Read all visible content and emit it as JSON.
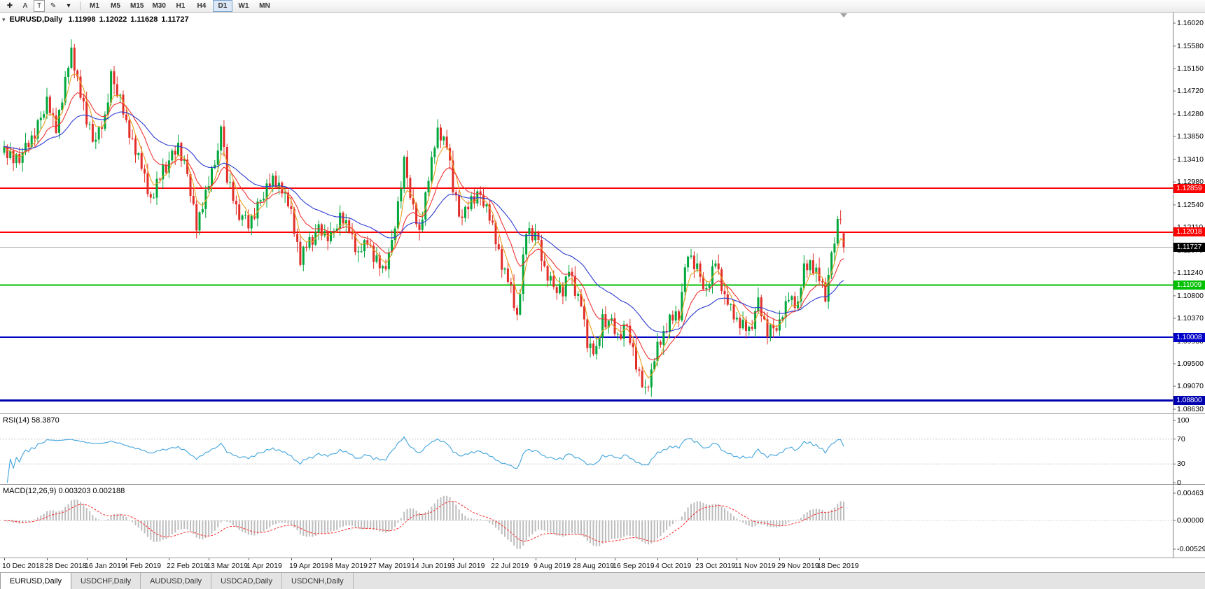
{
  "toolbar": {
    "tools": [
      {
        "name": "cursor-tool",
        "glyph": "✚"
      },
      {
        "name": "text-label-tool",
        "glyph": "A"
      },
      {
        "name": "text-box-tool",
        "glyph": "T",
        "boxed": true
      },
      {
        "name": "pencil-draw-tool",
        "glyph": "✎"
      },
      {
        "name": "arrow-style-dropdown",
        "glyph": "▾"
      }
    ],
    "timeframes": [
      "M1",
      "M5",
      "M15",
      "M30",
      "H1",
      "H4",
      "D1",
      "W1",
      "MN"
    ],
    "active_timeframe": "D1"
  },
  "chart": {
    "symbol_title": "EURUSD,Daily",
    "collapse_icon": "▾",
    "ohlc": {
      "open": "1.11998",
      "high": "1.12022",
      "low": "1.11628",
      "close": "1.11727"
    },
    "current_price": {
      "value": 1.11727,
      "label": "1.11727",
      "box_color": "#000000",
      "line_color": "#b8b8b8"
    },
    "levels": [
      {
        "price": 1.12859,
        "label": "1.12859",
        "color": "#ff0000",
        "width": 2
      },
      {
        "price": 1.12018,
        "label": "1.12018",
        "color": "#ff0000",
        "width": 2
      },
      {
        "price": 1.11009,
        "label": "1.11009",
        "color": "#00c000",
        "width": 2
      },
      {
        "price": 1.10008,
        "label": "1.10008",
        "color": "#0000c8",
        "width": 2
      },
      {
        "price": 1.088,
        "label": "1.08800",
        "color": "#0000b0",
        "width": 3
      }
    ],
    "candle_colors": {
      "up": "#00a83c",
      "down": "#e22e29"
    },
    "moving_averages": [
      {
        "name": "ma-fast",
        "period": 5,
        "color": "#e8a020"
      },
      {
        "name": "ma-mid",
        "period": 13,
        "color": "#f23333"
      },
      {
        "name": "ma-slow",
        "period": 34,
        "color": "#2b3bd0"
      }
    ]
  },
  "chart_data": {
    "type": "candlestick",
    "symbol": "EURUSD",
    "timeframe": "Daily",
    "y_axis": {
      "min": 1.0863,
      "max": 1.1602,
      "ticks": [
        "1.16020",
        "1.15580",
        "1.15150",
        "1.14720",
        "1.14280",
        "1.13850",
        "1.13410",
        "1.12980",
        "1.12540",
        "1.12110",
        "1.11670",
        "1.11240",
        "1.10800",
        "1.10370",
        "1.09930",
        "1.09500",
        "1.09070",
        "1.08630"
      ]
    },
    "x_dates": [
      {
        "label": "10 Dec 2018",
        "day": 0
      },
      {
        "label": "28 Dec 2018",
        "day": 14
      },
      {
        "label": "16 Jan 2019",
        "day": 27
      },
      {
        "label": "4 Feb 2019",
        "day": 40
      },
      {
        "label": "22 Feb 2019",
        "day": 54
      },
      {
        "label": "13 Mar 2019",
        "day": 67
      },
      {
        "label": "1 Apr 2019",
        "day": 80
      },
      {
        "label": "19 Apr 2019",
        "day": 94
      },
      {
        "label": "8 May 2019",
        "day": 107
      },
      {
        "label": "27 May 2019",
        "day": 120
      },
      {
        "label": "14 Jun 2019",
        "day": 134
      },
      {
        "label": "3 Jul 2019",
        "day": 147
      },
      {
        "label": "22 Jul 2019",
        "day": 160
      },
      {
        "label": "9 Aug 2019",
        "day": 174
      },
      {
        "label": "28 Aug 2019",
        "day": 187
      },
      {
        "label": "16 Sep 2019",
        "day": 200
      },
      {
        "label": "4 Oct 2019",
        "day": 214
      },
      {
        "label": "23 Oct 2019",
        "day": 227
      },
      {
        "label": "11 Nov 2019",
        "day": 240
      },
      {
        "label": "29 Nov 2019",
        "day": 254
      },
      {
        "label": "18 Dec 2019",
        "day": 267
      }
    ],
    "candle_count": 276,
    "anchors": [
      [
        0,
        1.136
      ],
      [
        3,
        1.1338
      ],
      [
        6,
        1.1352
      ],
      [
        10,
        1.1392
      ],
      [
        14,
        1.1448
      ],
      [
        17,
        1.1402
      ],
      [
        20,
        1.1492
      ],
      [
        22,
        1.1545
      ],
      [
        25,
        1.1468
      ],
      [
        27,
        1.1412
      ],
      [
        30,
        1.1376
      ],
      [
        33,
        1.1422
      ],
      [
        35,
        1.15
      ],
      [
        38,
        1.1452
      ],
      [
        40,
        1.1408
      ],
      [
        44,
        1.1346
      ],
      [
        48,
        1.1262
      ],
      [
        52,
        1.1322
      ],
      [
        54,
        1.1336
      ],
      [
        57,
        1.1368
      ],
      [
        60,
        1.1312
      ],
      [
        63,
        1.1208
      ],
      [
        65,
        1.1256
      ],
      [
        67,
        1.1302
      ],
      [
        70,
        1.1348
      ],
      [
        71,
        1.1412
      ],
      [
        73,
        1.1306
      ],
      [
        76,
        1.1246
      ],
      [
        80,
        1.1216
      ],
      [
        84,
        1.1262
      ],
      [
        88,
        1.1302
      ],
      [
        91,
        1.1288
      ],
      [
        94,
        1.1236
      ],
      [
        97,
        1.1148
      ],
      [
        99,
        1.1176
      ],
      [
        103,
        1.1206
      ],
      [
        107,
        1.1192
      ],
      [
        110,
        1.1226
      ],
      [
        113,
        1.1212
      ],
      [
        116,
        1.1158
      ],
      [
        119,
        1.1186
      ],
      [
        121,
        1.1154
      ],
      [
        124,
        1.1128
      ],
      [
        127,
        1.1176
      ],
      [
        131,
        1.1336
      ],
      [
        134,
        1.1242
      ],
      [
        136,
        1.1198
      ],
      [
        139,
        1.1312
      ],
      [
        142,
        1.1392
      ],
      [
        145,
        1.1372
      ],
      [
        147,
        1.1282
      ],
      [
        150,
        1.1226
      ],
      [
        153,
        1.1266
      ],
      [
        156,
        1.1272
      ],
      [
        160,
        1.1212
      ],
      [
        163,
        1.1142
      ],
      [
        166,
        1.1092
      ],
      [
        168,
        1.1038
      ],
      [
        171,
        1.1202
      ],
      [
        174,
        1.1198
      ],
      [
        177,
        1.1132
      ],
      [
        180,
        1.1096
      ],
      [
        183,
        1.1082
      ],
      [
        185,
        1.1136
      ],
      [
        187,
        1.1092
      ],
      [
        189,
        1.1062
      ],
      [
        191,
        1.0988
      ],
      [
        194,
        1.0972
      ],
      [
        196,
        1.1036
      ],
      [
        199,
        1.1026
      ],
      [
        201,
        1.1002
      ],
      [
        204,
        1.1022
      ],
      [
        207,
        1.0942
      ],
      [
        210,
        1.0902
      ],
      [
        212,
        1.0932
      ],
      [
        214,
        1.0982
      ],
      [
        218,
        1.1032
      ],
      [
        221,
        1.1046
      ],
      [
        224,
        1.1162
      ],
      [
        227,
        1.1132
      ],
      [
        230,
        1.1082
      ],
      [
        233,
        1.1152
      ],
      [
        236,
        1.1076
      ],
      [
        240,
        1.1032
      ],
      [
        244,
        1.1012
      ],
      [
        247,
        1.1066
      ],
      [
        250,
        1.1012
      ],
      [
        254,
        1.1022
      ],
      [
        257,
        1.1082
      ],
      [
        260,
        1.1062
      ],
      [
        262,
        1.1132
      ],
      [
        264,
        1.1142
      ],
      [
        267,
        1.1112
      ],
      [
        269,
        1.1082
      ],
      [
        271,
        1.1152
      ],
      [
        273,
        1.1222
      ],
      [
        274,
        1.1238
      ],
      [
        275,
        1.1173
      ]
    ],
    "noise": [
      0.0006,
      -0.0009,
      0.0012,
      -0.0004,
      0.0009,
      -0.0013,
      0.0003,
      0.0011,
      -0.0007,
      0.0005,
      -0.0011,
      0.001,
      0.0001,
      -0.0006,
      0.0013,
      -0.0003,
      0.0008,
      -0.001,
      0.0004,
      -0.0012,
      0.0007,
      -0.0002,
      0.001,
      -0.0008
    ],
    "wicks_up": [
      0.0011,
      0.0004,
      0.0016,
      0.0007,
      0.0002,
      0.0013,
      0.0008,
      0.0019,
      0.0005,
      0.0009,
      0.0014,
      0.0003,
      0.0012,
      0.0006,
      0.0017,
      0.0004,
      0.001,
      0.0015,
      0.0002,
      0.0008
    ],
    "wicks_down": [
      0.0005,
      0.0013,
      0.0003,
      0.0015,
      0.0009,
      0.0004,
      0.0017,
      0.0006,
      0.0011,
      0.0002,
      0.0014,
      0.0008,
      0.0018,
      0.0004,
      0.001,
      0.0006,
      0.002,
      0.0003,
      0.0012,
      0.0007
    ],
    "last_candle": {
      "open": 1.11998,
      "high": 1.12022,
      "low": 1.11628,
      "close": 1.11727
    }
  },
  "rsi": {
    "label": "RSI(14) 58.3870",
    "period": 14,
    "last_value": "58.3870",
    "axis": [
      "100",
      "70",
      "30",
      "0"
    ],
    "guide_levels": [
      70,
      30
    ],
    "line_color": "#42a5dd"
  },
  "macd": {
    "label": "MACD(12,26,9) 0.003203 0.002188",
    "fast": 12,
    "slow": 26,
    "signal": 9,
    "main_value": "0.003203",
    "signal_value": "0.002188",
    "axis": [
      "0.00463",
      "0.00000",
      "-0.00529"
    ],
    "bar_color": "#bdbdbd",
    "signal_color": "#ff2d2d"
  },
  "tabs": [
    {
      "label": "EURUSD,Daily",
      "active": true
    },
    {
      "label": "USDCHF,Daily",
      "active": false
    },
    {
      "label": "AUDUSD,Daily",
      "active": false
    },
    {
      "label": "USDCAD,Daily",
      "active": false
    },
    {
      "label": "USDCNH,Daily",
      "active": false
    }
  ]
}
